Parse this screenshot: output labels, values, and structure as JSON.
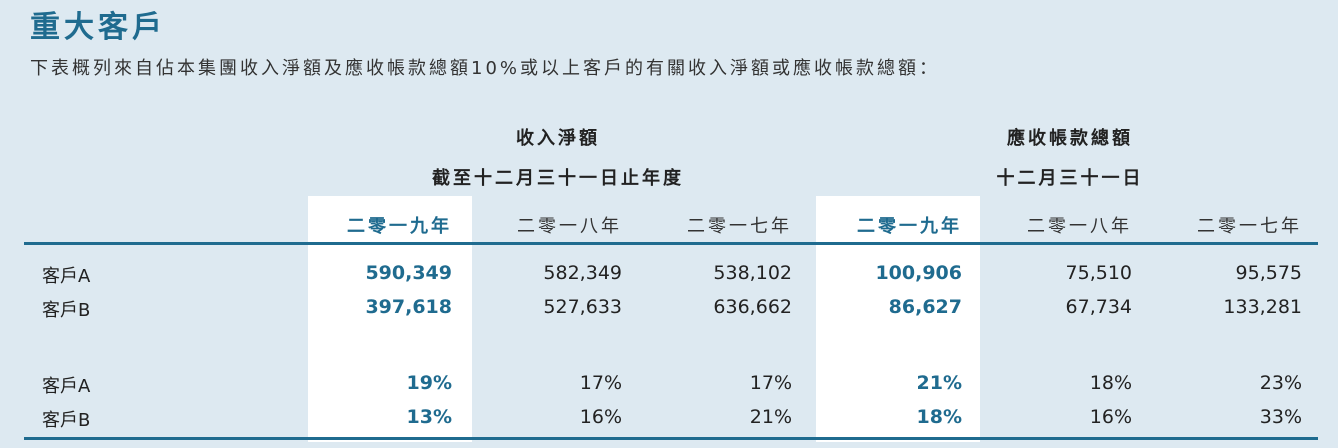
{
  "title": "重大客戶",
  "subtitle": "下表概列來自佔本集團收入淨額及應收帳款總額10%或以上客戶的有關收入淨額或應收帳款總額：",
  "groups": {
    "revenue": {
      "label": "收入淨額",
      "period": "截至十二月三十一日止年度"
    },
    "receivables": {
      "label": "應收帳款總額",
      "period": "十二月三十一日"
    }
  },
  "years": [
    "二零一九年",
    "二零一八年",
    "二零一七年",
    "二零一九年",
    "二零一八年",
    "二零一七年"
  ],
  "rows": [
    {
      "label": "客戶A",
      "values": [
        "590,349",
        "582,349",
        "538,102",
        "100,906",
        "75,510",
        "95,575"
      ]
    },
    {
      "label": "客戶B",
      "values": [
        "397,618",
        "527,633",
        "636,662",
        "86,627",
        "67,734",
        "133,281"
      ]
    },
    {
      "label": "客戶A",
      "values": [
        "19%",
        "17%",
        "17%",
        "21%",
        "18%",
        "23%"
      ]
    },
    {
      "label": "客戶B",
      "values": [
        "13%",
        "16%",
        "21%",
        "18%",
        "16%",
        "33%"
      ]
    }
  ],
  "colors": {
    "accent": "#1f6b8f",
    "background": "#dde9f1",
    "highlight": "#ffffff"
  }
}
